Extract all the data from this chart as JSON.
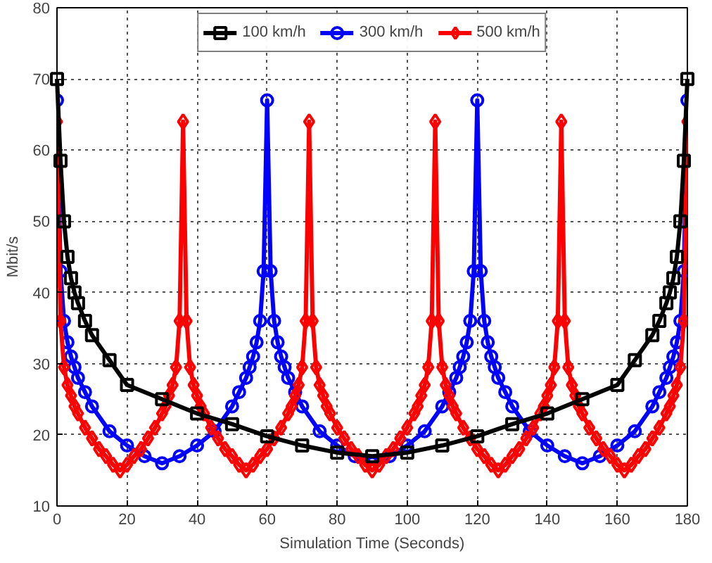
{
  "chart_data": {
    "type": "line",
    "xlabel": "Simulation Time (Seconds)",
    "ylabel": "Mbit/s",
    "xlim": [
      0,
      180
    ],
    "ylim": [
      10,
      80
    ],
    "xticks": [
      0,
      20,
      40,
      60,
      80,
      100,
      120,
      140,
      160,
      180
    ],
    "yticks": [
      10,
      20,
      30,
      40,
      50,
      60,
      70,
      80
    ],
    "grid": true,
    "legend": "top",
    "line_style": "solid",
    "series": [
      {
        "name": "100 km/h",
        "color": "#000000",
        "marker": "square",
        "x": [
          0,
          1,
          2,
          3,
          4,
          5,
          6,
          8,
          10,
          15,
          20,
          30,
          40,
          50,
          60,
          70,
          80,
          90,
          100,
          110,
          120,
          130,
          140,
          150,
          160,
          165,
          170,
          172,
          174,
          175,
          176,
          177,
          178,
          179,
          180
        ],
        "values": [
          70,
          58.5,
          50,
          45,
          42,
          40,
          38.5,
          36,
          34,
          30.5,
          27,
          25,
          23,
          21.5,
          19.8,
          18.5,
          17.5,
          17,
          17.5,
          18.5,
          19.8,
          21.5,
          23,
          25,
          27,
          30.5,
          34,
          36,
          38.5,
          40,
          42,
          45,
          50,
          58.5,
          70
        ]
      },
      {
        "name": "300 km/h",
        "color": "#0000ff",
        "marker": "circle",
        "x": [
          0,
          1,
          2,
          3,
          4,
          5,
          6,
          8,
          10,
          15,
          20,
          25,
          30,
          35,
          40,
          45,
          50,
          52,
          54,
          55,
          56,
          57,
          58,
          59,
          60,
          61,
          62,
          63,
          64,
          65,
          66,
          68,
          70,
          75,
          80,
          85,
          90,
          95,
          100,
          105,
          110,
          112,
          114,
          115,
          116,
          117,
          118,
          119,
          120,
          121,
          122,
          123,
          124,
          125,
          126,
          128,
          130,
          135,
          140,
          145,
          150,
          155,
          160,
          165,
          170,
          172,
          174,
          175,
          176,
          177,
          178,
          179,
          180
        ],
        "values": [
          67,
          43,
          36,
          33,
          31,
          29.5,
          28,
          26,
          24,
          20.5,
          18.5,
          17,
          16,
          17,
          18.5,
          20.5,
          24,
          26,
          28,
          29.5,
          31,
          33,
          36,
          43,
          67,
          43,
          36,
          33,
          31,
          29.5,
          28,
          26,
          24,
          20.5,
          18.5,
          17,
          16,
          17,
          18.5,
          20.5,
          24,
          26,
          28,
          29.5,
          31,
          33,
          36,
          43,
          67,
          43,
          36,
          33,
          31,
          29.5,
          28,
          26,
          24,
          20.5,
          18.5,
          17,
          16,
          17,
          18.5,
          20.5,
          24,
          26,
          28,
          29.5,
          31,
          33,
          36,
          43,
          67
        ]
      },
      {
        "name": "500 km/h",
        "color": "#ff0000",
        "marker": "diamond",
        "x": [
          0,
          1,
          2,
          3,
          4,
          5,
          6,
          8,
          10,
          12,
          14,
          16,
          18,
          20,
          22,
          24,
          26,
          28,
          30,
          31,
          32,
          33,
          34,
          35,
          36,
          37,
          38,
          39,
          40,
          41,
          42,
          44,
          46,
          48,
          50,
          52,
          54,
          56,
          58,
          60,
          62,
          64,
          66,
          67,
          68,
          69,
          70,
          71,
          72,
          73,
          74,
          75,
          76,
          77,
          78,
          80,
          82,
          84,
          86,
          88,
          90,
          92,
          94,
          96,
          98,
          100,
          102,
          103,
          104,
          105,
          106,
          107,
          108,
          109,
          110,
          111,
          112,
          113,
          114,
          116,
          118,
          120,
          122,
          124,
          126,
          128,
          130,
          132,
          134,
          136,
          138,
          139,
          140,
          141,
          142,
          143,
          144,
          145,
          146,
          147,
          148,
          149,
          150,
          152,
          154,
          156,
          158,
          160,
          162,
          164,
          166,
          168,
          170,
          172,
          174,
          175,
          176,
          177,
          178,
          179,
          180
        ],
        "values": [
          64,
          36,
          29.5,
          27,
          25.5,
          24,
          23,
          21,
          19.5,
          18,
          17,
          15.8,
          15,
          15.8,
          17,
          18,
          19.5,
          21,
          23,
          24,
          25.5,
          27,
          29.5,
          36,
          64,
          36,
          29.5,
          27,
          25.5,
          24,
          23,
          21,
          19.5,
          18,
          17,
          15.8,
          15,
          15.8,
          17,
          18,
          19.5,
          21,
          23,
          24,
          25.5,
          27,
          29.5,
          36,
          64,
          36,
          29.5,
          27,
          25.5,
          24,
          23,
          21,
          19.5,
          18,
          17,
          15.8,
          15,
          15.8,
          17,
          18,
          19.5,
          21,
          23,
          24,
          25.5,
          27,
          29.5,
          36,
          64,
          36,
          29.5,
          27,
          25.5,
          24,
          23,
          21,
          19.5,
          18,
          17,
          15.8,
          15,
          15.8,
          17,
          18,
          19.5,
          21,
          23,
          24,
          25.5,
          27,
          29.5,
          36,
          64,
          36,
          29.5,
          27,
          25.5,
          24,
          23,
          21,
          19.5,
          18,
          17,
          15.8,
          15,
          15.8,
          17,
          18,
          19.5,
          21,
          23,
          24,
          25.5,
          27,
          29.5,
          36,
          64
        ]
      }
    ]
  }
}
